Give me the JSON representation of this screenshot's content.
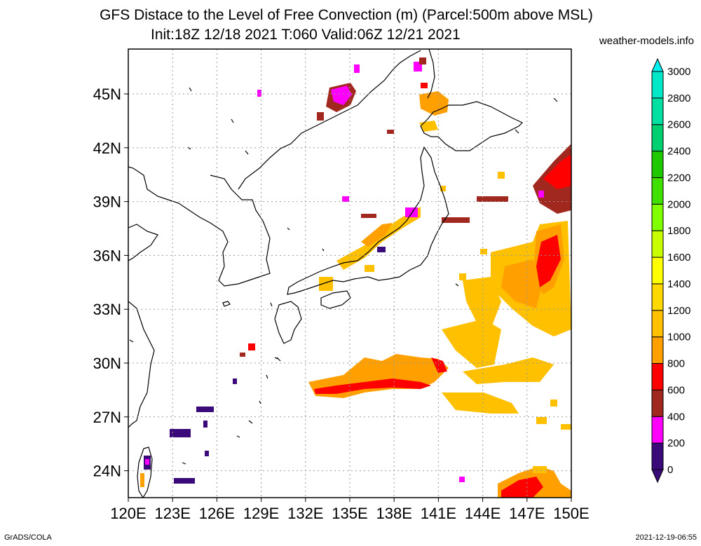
{
  "header": {
    "title_line1": "GFS Distace to the Level of Free Convection (m) (Parcel:500m above MSL)",
    "title_line2": "Init:18Z 12/18 2021 T:060 Valid:06Z 12/21 2021",
    "source": "weather-models.info"
  },
  "footer": {
    "left": "GrADS/COLA",
    "right": "2021-12-19-06:55"
  },
  "map": {
    "lon_range": [
      120,
      150
    ],
    "lat_range": [
      22.5,
      47.5
    ],
    "lon_labels": [
      "120E",
      "123E",
      "126E",
      "129E",
      "132E",
      "135E",
      "138E",
      "141E",
      "144E",
      "147E",
      "150E"
    ],
    "lat_labels": [
      "24N",
      "27N",
      "30N",
      "33N",
      "36N",
      "39N",
      "42N",
      "45N"
    ]
  },
  "colorbar": {
    "labels": [
      "0",
      "200",
      "400",
      "600",
      "800",
      "1000",
      "1200",
      "1400",
      "1600",
      "1800",
      "2000",
      "2200",
      "2400",
      "2600",
      "2800",
      "3000"
    ],
    "colors": [
      "#3a0a7a",
      "#ff00ff",
      "#a0281e",
      "#ff0000",
      "#ffa000",
      "#ffc000",
      "#ffd800",
      "#ffff00",
      "#c8ff00",
      "#80ff00",
      "#40e000",
      "#20c800",
      "#00d070",
      "#00e0a0",
      "#00e8c8",
      "#00f0f0"
    ]
  }
}
